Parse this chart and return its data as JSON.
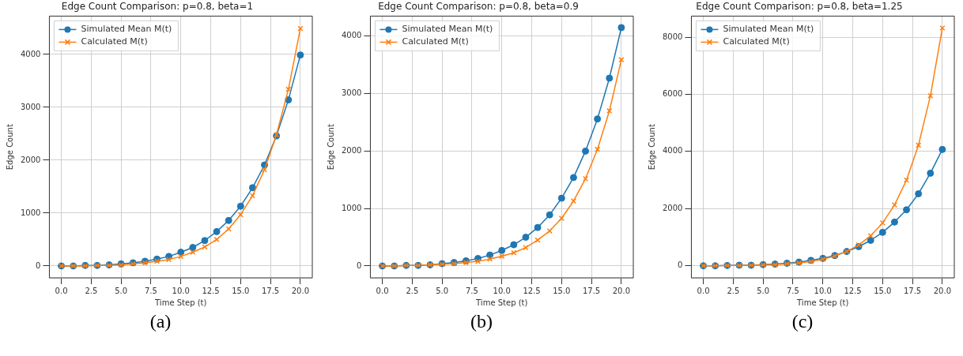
{
  "chart_data": [
    {
      "type": "line",
      "title": "Edge Count Comparison: p=0.8, beta=1",
      "xlabel": "Time Step (t)",
      "ylabel": "Edge Count",
      "annotations": [
        "(a)"
      ],
      "x": [
        0,
        1,
        2,
        3,
        4,
        5,
        6,
        7,
        8,
        9,
        10,
        11,
        12,
        13,
        14,
        15,
        16,
        17,
        18,
        19,
        20
      ],
      "series": [
        {
          "name": "Simulated Mean M(t)",
          "color": "#1f77b4",
          "marker": "circle",
          "values": [
            0,
            0,
            10,
            10,
            20,
            40,
            60,
            90,
            130,
            180,
            260,
            350,
            480,
            650,
            860,
            1130,
            1480,
            1910,
            2460,
            3140,
            3990
          ]
        },
        {
          "name": "Calculated M(t)",
          "color": "#ff7f0e",
          "marker": "cross",
          "values": [
            0,
            0,
            0,
            10,
            10,
            20,
            40,
            60,
            90,
            120,
            180,
            260,
            360,
            500,
            700,
            970,
            1330,
            1820,
            2480,
            3340,
            4490
          ]
        }
      ],
      "xlim": [
        -1,
        21
      ],
      "ylim": [
        -225,
        4725
      ],
      "xticks": [
        {
          "value": 0,
          "label": "0.0"
        },
        {
          "value": 2.5,
          "label": "2.5"
        },
        {
          "value": 5,
          "label": "5.0"
        },
        {
          "value": 7.5,
          "label": "7.5"
        },
        {
          "value": 10,
          "label": "10.0"
        },
        {
          "value": 12.5,
          "label": "12.5"
        },
        {
          "value": 15,
          "label": "15.0"
        },
        {
          "value": 17.5,
          "label": "17.5"
        },
        {
          "value": 20,
          "label": "20.0"
        }
      ],
      "yticks": [
        0,
        1000,
        2000,
        3000,
        4000
      ],
      "grid": true,
      "legend": "top left"
    },
    {
      "type": "line",
      "title": "Edge Count Comparison: p=0.8, beta=0.9",
      "xlabel": "Time Step (t)",
      "ylabel": "Edge Count",
      "annotations": [
        "(b)"
      ],
      "x": [
        0,
        1,
        2,
        3,
        4,
        5,
        6,
        7,
        8,
        9,
        10,
        11,
        12,
        13,
        14,
        15,
        16,
        17,
        18,
        19,
        20
      ],
      "series": [
        {
          "name": "Simulated Mean M(t)",
          "color": "#1f77b4",
          "marker": "circle",
          "values": [
            0,
            0,
            10,
            10,
            20,
            40,
            60,
            90,
            130,
            190,
            270,
            370,
            500,
            670,
            890,
            1180,
            1540,
            2000,
            2560,
            3270,
            4150
          ]
        },
        {
          "name": "Calculated M(t)",
          "color": "#ff7f0e",
          "marker": "cross",
          "values": [
            0,
            0,
            10,
            10,
            20,
            30,
            40,
            60,
            80,
            120,
            170,
            230,
            320,
            450,
            610,
            830,
            1130,
            1520,
            2030,
            2700,
            3590
          ]
        }
      ],
      "xlim": [
        -1,
        21
      ],
      "ylim": [
        -207,
        4350
      ],
      "xticks": [
        {
          "value": 0,
          "label": "0.0"
        },
        {
          "value": 2.5,
          "label": "2.5"
        },
        {
          "value": 5,
          "label": "5.0"
        },
        {
          "value": 7.5,
          "label": "7.5"
        },
        {
          "value": 10,
          "label": "10.0"
        },
        {
          "value": 12.5,
          "label": "12.5"
        },
        {
          "value": 15,
          "label": "15.0"
        },
        {
          "value": 17.5,
          "label": "17.5"
        },
        {
          "value": 20,
          "label": "20.0"
        }
      ],
      "yticks": [
        0,
        1000,
        2000,
        3000,
        4000
      ],
      "grid": true,
      "legend": "top left"
    },
    {
      "type": "line",
      "title": "Edge Count Comparison: p=0.8, beta=1.25",
      "xlabel": "Time Step (t)",
      "ylabel": "Edge Count",
      "annotations": [
        "(c)"
      ],
      "x": [
        0,
        1,
        2,
        3,
        4,
        5,
        6,
        7,
        8,
        9,
        10,
        11,
        12,
        13,
        14,
        15,
        16,
        17,
        18,
        19,
        20
      ],
      "series": [
        {
          "name": "Simulated Mean M(t)",
          "color": "#1f77b4",
          "marker": "circle",
          "values": [
            0,
            0,
            10,
            20,
            20,
            40,
            60,
            90,
            130,
            190,
            260,
            360,
            500,
            670,
            890,
            1170,
            1530,
            1960,
            2520,
            3240,
            4070
          ]
        },
        {
          "name": "Calculated M(t)",
          "color": "#ff7f0e",
          "marker": "cross",
          "values": [
            0,
            0,
            10,
            10,
            20,
            30,
            40,
            70,
            100,
            150,
            230,
            340,
            500,
            730,
            1050,
            1500,
            2130,
            3000,
            4220,
            5950,
            8320
          ]
        }
      ],
      "xlim": [
        -1,
        21
      ],
      "ylim": [
        -422,
        8737
      ],
      "xticks": [
        {
          "value": 0,
          "label": "0.0"
        },
        {
          "value": 2.5,
          "label": "2.5"
        },
        {
          "value": 5,
          "label": "5.0"
        },
        {
          "value": 7.5,
          "label": "7.5"
        },
        {
          "value": 10,
          "label": "10.0"
        },
        {
          "value": 12.5,
          "label": "12.5"
        },
        {
          "value": 15,
          "label": "15.0"
        },
        {
          "value": 17.5,
          "label": "17.5"
        },
        {
          "value": 20,
          "label": "20.0"
        }
      ],
      "yticks": [
        0,
        2000,
        4000,
        6000,
        8000
      ],
      "grid": true,
      "legend": "top left"
    }
  ]
}
